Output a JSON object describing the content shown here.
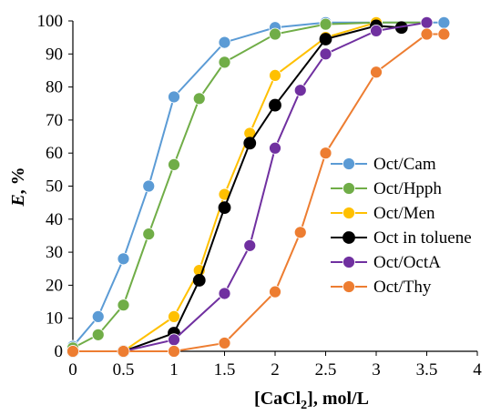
{
  "chart_data": {
    "type": "scatter",
    "mode": "lines+markers",
    "xlabel": "[CaCl2], mol/L",
    "xlabel_main": "[CaCl",
    "xlabel_sub": "2",
    "xlabel_rest": "], mol/L",
    "ylabel": "E, %",
    "ylabel_italic": "E",
    "ylabel_rest": ", %",
    "xlim": [
      0,
      4
    ],
    "ylim": [
      0,
      100
    ],
    "xticks": [
      0,
      0.5,
      1,
      1.5,
      2,
      2.5,
      3,
      3.5,
      4
    ],
    "xtick_labels": [
      "0",
      "0.5",
      "1",
      "1.5",
      "2",
      "2.5",
      "3",
      "3.5",
      "4"
    ],
    "yticks": [
      0,
      10,
      20,
      30,
      40,
      50,
      60,
      70,
      80,
      90,
      100
    ],
    "ytick_labels": [
      "0",
      "10",
      "20",
      "30",
      "40",
      "50",
      "60",
      "70",
      "80",
      "90",
      "100"
    ],
    "grid": false,
    "legend_position": "right",
    "series": [
      {
        "name": "Oct/Cam",
        "color": "#5B9BD5",
        "points": [
          [
            0,
            1.5
          ],
          [
            0.25,
            10.5
          ],
          [
            0.5,
            28
          ],
          [
            0.75,
            50
          ],
          [
            1,
            77
          ],
          [
            1.5,
            93.5
          ],
          [
            2,
            98
          ],
          [
            2.5,
            99.5
          ],
          [
            3,
            99.5
          ],
          [
            3.5,
            99.5
          ],
          [
            3.67,
            99.5
          ]
        ]
      },
      {
        "name": "Oct/Hpph",
        "color": "#70AD47",
        "points": [
          [
            0,
            1
          ],
          [
            0.25,
            5
          ],
          [
            0.5,
            14
          ],
          [
            0.75,
            35.5
          ],
          [
            1,
            56.5
          ],
          [
            1.25,
            76.5
          ],
          [
            1.5,
            87.5
          ],
          [
            2,
            96
          ],
          [
            2.5,
            99
          ],
          [
            3,
            99.5
          ],
          [
            3.5,
            99.5
          ]
        ]
      },
      {
        "name": "Oct/Men",
        "color": "#FFC000",
        "points": [
          [
            0,
            0
          ],
          [
            0.5,
            0
          ],
          [
            1,
            10.5
          ],
          [
            1.25,
            24.5
          ],
          [
            1.5,
            47.5
          ],
          [
            1.75,
            66
          ],
          [
            2,
            83.5
          ],
          [
            2.5,
            95
          ],
          [
            3,
            99.5
          ]
        ]
      },
      {
        "name": "Oct in toluene",
        "color": "#000000",
        "points": [
          [
            0,
            0
          ],
          [
            0.5,
            0
          ],
          [
            1,
            5.5
          ],
          [
            1.25,
            21.5
          ],
          [
            1.5,
            43.5
          ],
          [
            1.75,
            63
          ],
          [
            2,
            74.5
          ],
          [
            2.5,
            94.5
          ],
          [
            3,
            98.5
          ],
          [
            3.25,
            98
          ]
        ]
      },
      {
        "name": "Oct/OctA",
        "color": "#7030A0",
        "points": [
          [
            0,
            0
          ],
          [
            0.5,
            0
          ],
          [
            1,
            3.5
          ],
          [
            1.5,
            17.5
          ],
          [
            1.75,
            32
          ],
          [
            2,
            61.5
          ],
          [
            2.25,
            79
          ],
          [
            2.5,
            90
          ],
          [
            3,
            97
          ],
          [
            3.5,
            99.5
          ]
        ]
      },
      {
        "name": "Oct/Thy",
        "color": "#ED7D31",
        "points": [
          [
            0,
            0
          ],
          [
            0.5,
            0
          ],
          [
            1,
            0
          ],
          [
            1.5,
            2.5
          ],
          [
            2,
            18
          ],
          [
            2.25,
            36
          ],
          [
            2.5,
            60
          ],
          [
            3,
            84.5
          ],
          [
            3.5,
            96
          ],
          [
            3.67,
            96
          ]
        ]
      }
    ]
  }
}
